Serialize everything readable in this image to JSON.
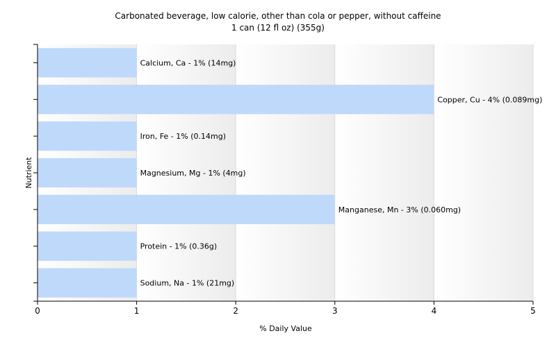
{
  "chart_data": {
    "type": "bar",
    "orientation": "horizontal",
    "title": "Carbonated beverage, low calorie, other than cola or pepper,  without caffeine",
    "subtitle": "1 can (12 fl oz) (355g)",
    "xlabel": "% Daily Value",
    "ylabel": "Nutrient",
    "xlim": [
      0,
      5
    ],
    "xticks": [
      0,
      1,
      2,
      3,
      4,
      5
    ],
    "grid": true,
    "bar_color": "#bfd9fb",
    "categories": [
      "Calcium, Ca",
      "Copper, Cu",
      "Iron, Fe",
      "Magnesium, Mg",
      "Manganese, Mn",
      "Protein",
      "Sodium, Na"
    ],
    "values": [
      1,
      4,
      1,
      1,
      3,
      1,
      1
    ],
    "labels": [
      "Calcium, Ca - 1% (14mg)",
      "Copper, Cu - 4% (0.089mg)",
      "Iron, Fe - 1% (0.14mg)",
      "Magnesium, Mg - 1% (4mg)",
      "Manganese, Mn - 3% (0.060mg)",
      "Protein - 1% (0.36g)",
      "Sodium, Na - 1% (21mg)"
    ]
  }
}
